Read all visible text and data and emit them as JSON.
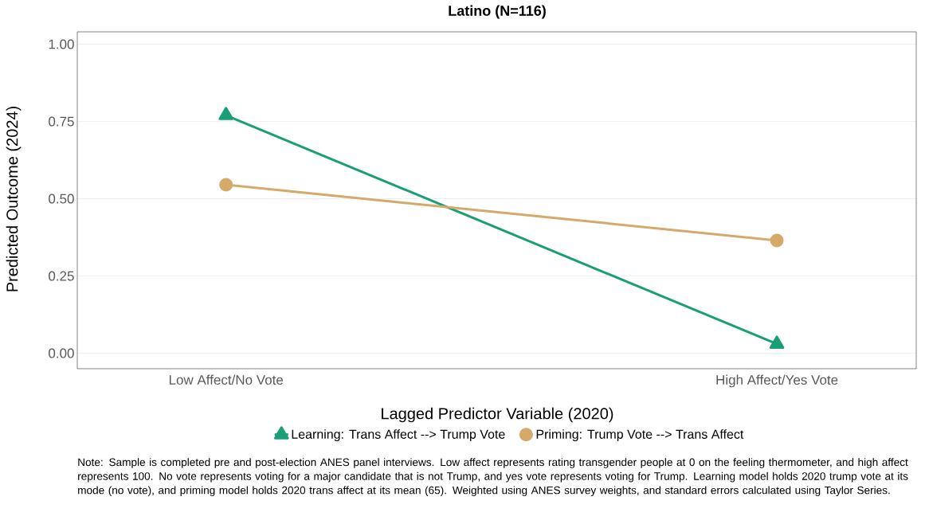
{
  "chart_data": {
    "type": "line",
    "title": "Latino (N=116)",
    "xlabel": "Lagged Predictor Variable (2020)",
    "ylabel": "Predicted Outcome (2024)",
    "categories": [
      "Low Affect/No Vote",
      "High Affect/Yes Vote"
    ],
    "series": [
      {
        "name": "Learning: Trans Affect --> Trump Vote",
        "color": "#1a9e77",
        "marker": "triangle",
        "values": [
          0.77,
          0.03
        ]
      },
      {
        "name": "Priming: Trump Vote --> Trans Affect",
        "color": "#d4a96a",
        "marker": "circle",
        "values": [
          0.545,
          0.365
        ]
      }
    ],
    "ylim": [
      -0.05,
      1.04
    ],
    "yticks": [
      {
        "value": 0,
        "label": "0.00"
      },
      {
        "value": 0.25,
        "label": "0.25"
      },
      {
        "value": 0.5,
        "label": "0.50"
      },
      {
        "value": 0.75,
        "label": "0.75"
      },
      {
        "value": 1,
        "label": "1.00"
      }
    ],
    "grid": "y",
    "legend": "bottom",
    "line_style": "solid",
    "annotations": [
      "Note: Sample is completed pre and post-election ANES panel interviews. Low affect represents rating transgender people at 0 on the feeling thermometer, and high affect represents 100. No vote represents voting for a major candidate that is not Trump, and yes vote represents voting for Trump. Learning model holds 2020 trump vote at its mode (no vote), and priming model holds 2020 trans affect at its mean (65). Weighted using ANES survey weights, and standard errors calculated using Taylor Series."
    ]
  }
}
